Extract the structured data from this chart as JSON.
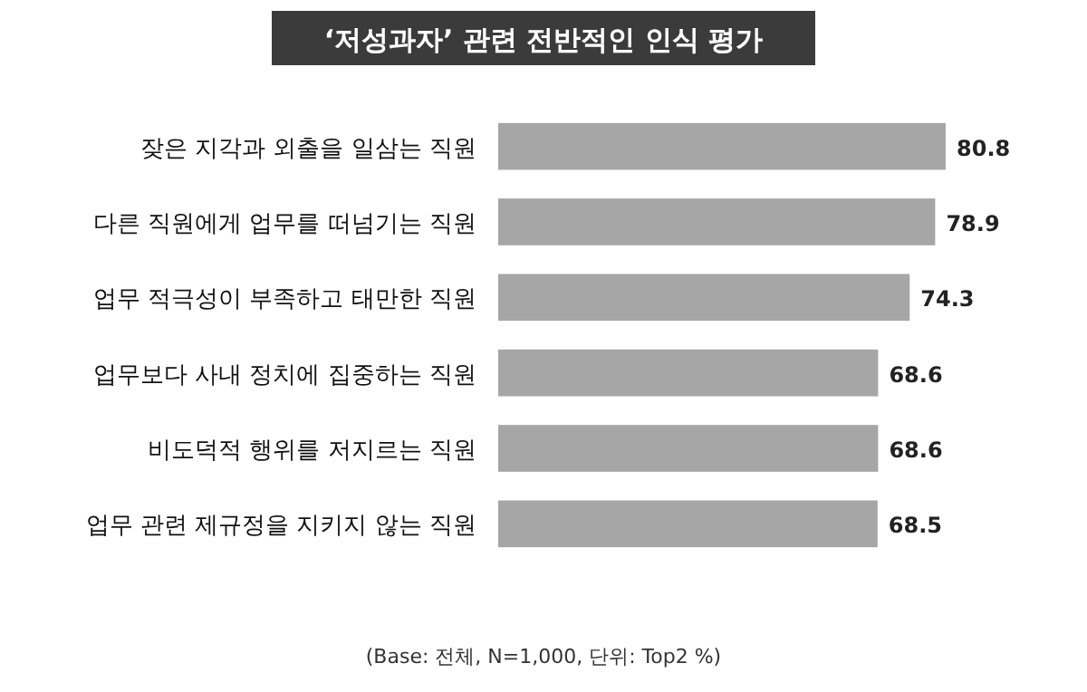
{
  "chart_data": {
    "type": "bar",
    "orientation": "horizontal",
    "title": "‘저성과자’ 관련 전반적인 인식 평가",
    "categories": [
      "잦은 지각과 외출을 일삼는 직원",
      "다른 직원에게 업무를 떠넘기는 직원",
      "업무 적극성이 부족하고 태만한 직원",
      "업무보다 사내 정치에 집중하는 직원",
      "비도덕적 행위를 저지르는 직원",
      "업무 관련 제규정을 지키지 않는 직원"
    ],
    "values": [
      80.8,
      78.9,
      74.3,
      68.6,
      68.6,
      68.5
    ],
    "color": "#a6a6a6",
    "data_labels": true,
    "annotations": [
      "(Base: 전체, N=1,000, 단위: Top2 %)"
    ]
  }
}
